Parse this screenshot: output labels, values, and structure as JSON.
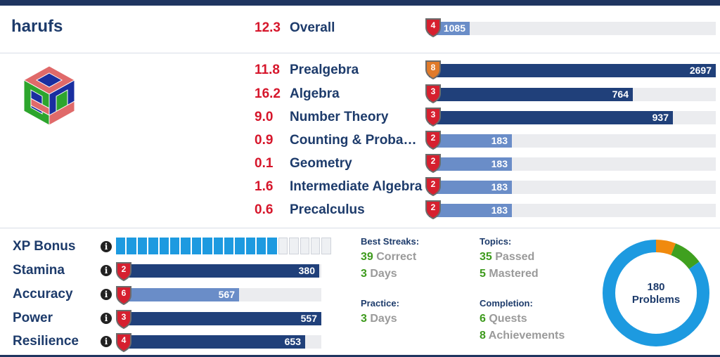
{
  "user": {
    "name": "harufs"
  },
  "overall": {
    "score": "12.3",
    "name": "Overall",
    "level": "4",
    "value": "1085",
    "fraction": 0.143,
    "shield_color": "#d6202f"
  },
  "subjects": [
    {
      "score": "11.8",
      "name": "Prealgebra",
      "level": "8",
      "value": "2697",
      "fraction": 1.0,
      "shield_color": "#e07a2a",
      "fill": "dark"
    },
    {
      "score": "16.2",
      "name": "Algebra",
      "level": "3",
      "value": "764",
      "fraction": 0.71,
      "shield_color": "#d6202f",
      "fill": "dark"
    },
    {
      "score": "9.0",
      "name": "Number Theory",
      "level": "3",
      "value": "937",
      "fraction": 0.85,
      "shield_color": "#d6202f",
      "fill": "dark"
    },
    {
      "score": "0.9",
      "name": "Counting & Probabi…",
      "level": "2",
      "value": "183",
      "fraction": 0.29,
      "shield_color": "#d6202f",
      "fill": "light"
    },
    {
      "score": "0.1",
      "name": "Geometry",
      "level": "2",
      "value": "183",
      "fraction": 0.29,
      "shield_color": "#d6202f",
      "fill": "light"
    },
    {
      "score": "1.6",
      "name": "Intermediate Algebra",
      "level": "2",
      "value": "183",
      "fraction": 0.29,
      "shield_color": "#d6202f",
      "fill": "light"
    },
    {
      "score": "0.6",
      "name": "Precalculus",
      "level": "2",
      "value": "183",
      "fraction": 0.29,
      "shield_color": "#d6202f",
      "fill": "light"
    }
  ],
  "stats": {
    "xp": {
      "label": "XP Bonus",
      "segments_total": 20,
      "segments_filled": 15
    },
    "rows": [
      {
        "label": "Stamina",
        "level": "2",
        "value": "380",
        "fraction": 0.99,
        "fill": "dark"
      },
      {
        "label": "Accuracy",
        "level": "6",
        "value": "567",
        "fraction": 0.59,
        "fill": "light"
      },
      {
        "label": "Power",
        "level": "3",
        "value": "557",
        "fraction": 1.0,
        "fill": "dark"
      },
      {
        "label": "Resilience",
        "level": "4",
        "value": "653",
        "fraction": 0.92,
        "fill": "dark"
      }
    ],
    "info_glyph": "i"
  },
  "best_streaks": {
    "title": "Best Streaks:",
    "correct_num": "39",
    "correct_label": "Correct",
    "days_num": "3",
    "days_label": "Days"
  },
  "practice": {
    "title": "Practice:",
    "days_num": "3",
    "days_label": "Days"
  },
  "topics": {
    "title": "Topics:",
    "passed_num": "35",
    "passed_label": "Passed",
    "mastered_num": "5",
    "mastered_label": "Mastered"
  },
  "completion": {
    "title": "Completion:",
    "quests_num": "6",
    "quests_label": "Quests",
    "ach_num": "8",
    "ach_label": "Achievements"
  },
  "donut": {
    "count": "180",
    "label": "Problems",
    "segments": [
      {
        "name": "orange",
        "fraction": 0.06,
        "color": "#f08a0e"
      },
      {
        "name": "green",
        "fraction": 0.09,
        "color": "#3fa01f"
      },
      {
        "name": "blue",
        "fraction": 0.85,
        "color": "#1d9ae0"
      }
    ]
  },
  "colors": {
    "navy": "#20407a",
    "light_blue": "#6a8dc8",
    "red": "#d6162b",
    "green": "#3d9a1c",
    "orange_shield": "#e07a2a"
  }
}
